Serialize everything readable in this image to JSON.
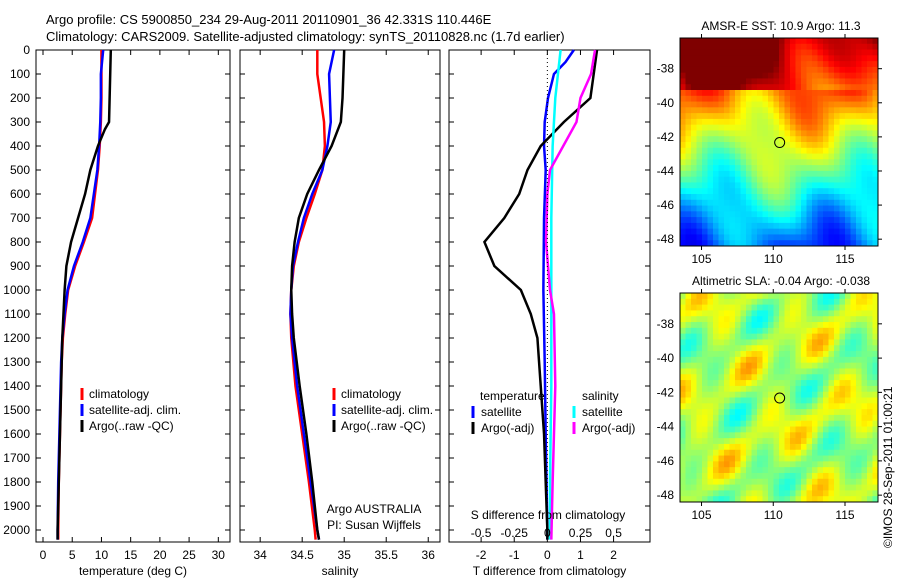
{
  "title_line1": "Argo profile: CS 5900850_234 29-Aug-2011 20110901_36 42.331S 110.446E",
  "title_line2": "Climatology: CARS2009. Satellite-adjusted climatology: synTS_20110828.nc (1.7d earlier)",
  "credit": "©IMOS 28-Sep-2011 01:00:21",
  "colors": {
    "climatology": "#ff0000",
    "satellite": "#0000ff",
    "argo": "#000000",
    "s_satellite": "#00ffff",
    "s_argo": "#ff00ff"
  },
  "chart_data": [
    {
      "type": "line",
      "title": "",
      "xlabel": "temperature (deg C)",
      "ylabel": "",
      "xlim": [
        -1.2,
        32
      ],
      "ylim": [
        2050,
        0
      ],
      "xticks": [
        0,
        5,
        10,
        15,
        20,
        25,
        30
      ],
      "yticks": [
        0,
        100,
        200,
        300,
        400,
        500,
        600,
        700,
        800,
        900,
        1000,
        1100,
        1200,
        1300,
        1400,
        1500,
        1600,
        1700,
        1800,
        1900,
        2000
      ],
      "legend": [
        "climatology",
        "satellite-adj. clim.",
        "Argo(..raw -QC)"
      ],
      "series": [
        {
          "name": "climatology",
          "color": "#ff0000",
          "depth": [
            0,
            100,
            200,
            300,
            400,
            500,
            600,
            700,
            800,
            900,
            1000,
            1100,
            1200,
            1300,
            1400,
            1600,
            1800,
            2000,
            2040
          ],
          "values": [
            10,
            10,
            10,
            9.9,
            9.7,
            9.4,
            8.9,
            8.4,
            7.0,
            5.5,
            4.3,
            3.8,
            3.4,
            3.2,
            3.1,
            2.9,
            2.7,
            2.6,
            2.6
          ]
        },
        {
          "name": "satellite-adj. clim.",
          "color": "#0000ff",
          "depth": [
            0,
            100,
            200,
            300,
            400,
            500,
            600,
            700,
            800,
            900,
            1000,
            1100,
            1200,
            1300,
            1400,
            1600,
            1800,
            2000,
            2040
          ],
          "values": [
            10.3,
            9.9,
            9.9,
            9.8,
            9.6,
            9.3,
            8.7,
            8.1,
            6.8,
            5.3,
            4.2,
            3.7,
            3.3,
            3.1,
            3.0,
            2.8,
            2.6,
            2.5,
            2.5
          ]
        },
        {
          "name": "Argo(..raw -QC)",
          "color": "#000000",
          "depth": [
            0,
            100,
            200,
            300,
            330,
            400,
            500,
            600,
            700,
            800,
            900,
            1000,
            1100,
            1200,
            1400,
            1600,
            1800,
            2000,
            2040
          ],
          "values": [
            11.6,
            11.5,
            11.4,
            11.3,
            10.6,
            9.4,
            8.1,
            7.2,
            6.0,
            4.8,
            4.0,
            3.7,
            3.5,
            3.3,
            3.1,
            2.9,
            2.7,
            2.5,
            2.5
          ]
        }
      ]
    },
    {
      "type": "line",
      "xlabel": "salinity",
      "xlim": [
        33.76,
        36.14
      ],
      "ylim": [
        2050,
        0
      ],
      "xticks": [
        34,
        34.5,
        35,
        35.5,
        36
      ],
      "legend": [
        "climatology",
        "satellite-adj. clim.",
        "Argo(..raw -QC)"
      ],
      "annotation": [
        "Argo AUSTRALIA",
        "PI: Susan Wijffels"
      ],
      "series": [
        {
          "name": "climatology",
          "color": "#ff0000",
          "depth": [
            0,
            100,
            200,
            300,
            400,
            500,
            600,
            700,
            800,
            900,
            1000,
            1100,
            1200,
            1400,
            1600,
            1800,
            2000,
            2040
          ],
          "values": [
            34.68,
            34.68,
            34.72,
            34.76,
            34.77,
            34.74,
            34.65,
            34.55,
            34.46,
            34.4,
            34.37,
            34.36,
            34.37,
            34.42,
            34.5,
            34.58,
            34.65,
            34.66
          ]
        },
        {
          "name": "satellite-adj. clim.",
          "color": "#0000ff",
          "depth": [
            0,
            100,
            200,
            300,
            400,
            500,
            600,
            700,
            800,
            900,
            1000,
            1100,
            1200,
            1400,
            1600,
            1800,
            2000,
            2040
          ],
          "values": [
            34.88,
            34.82,
            34.83,
            34.84,
            34.8,
            34.74,
            34.62,
            34.52,
            34.45,
            34.39,
            34.37,
            34.36,
            34.38,
            34.44,
            34.52,
            34.6,
            34.68,
            34.7
          ]
        },
        {
          "name": "Argo(..raw -QC)",
          "color": "#000000",
          "depth": [
            0,
            100,
            200,
            300,
            400,
            500,
            600,
            700,
            800,
            900,
            1000,
            1100,
            1200,
            1400,
            1600,
            1800,
            2000,
            2040
          ],
          "values": [
            35.0,
            34.99,
            34.98,
            34.96,
            34.85,
            34.7,
            34.56,
            34.46,
            34.41,
            34.38,
            34.37,
            34.38,
            34.4,
            34.47,
            34.55,
            34.62,
            34.68,
            34.7
          ]
        }
      ]
    },
    {
      "type": "line",
      "xlabel": "T difference from climatology",
      "xlabel_top": "S difference from climatology",
      "xlim": [
        -2.97,
        3.1
      ],
      "ylim": [
        2050,
        0
      ],
      "xticks": [
        -2,
        -1,
        0,
        1,
        2
      ],
      "xticks_s": [
        "-0.5",
        "-0.25",
        "0",
        "0.25",
        "0.5"
      ],
      "s_scale": 4,
      "legend_t_title": "temperature",
      "legend_s_title": "salinity",
      "legend_t": [
        "satellite",
        "Argo(-adj)"
      ],
      "legend_s": [
        "satellite",
        "Argo(-adj)"
      ],
      "series": [
        {
          "name": "T satellite",
          "color": "#0000ff",
          "units": "T",
          "depth": [
            0,
            50,
            100,
            200,
            300,
            400,
            500,
            700,
            1000,
            1300,
            1600,
            2000,
            2040
          ],
          "values": [
            0.8,
            0.55,
            0.2,
            0.02,
            -0.08,
            -0.1,
            -0.05,
            -0.1,
            -0.12,
            -0.08,
            -0.05,
            0,
            0
          ]
        },
        {
          "name": "T Argo(-adj)",
          "color": "#000000",
          "units": "T",
          "depth": [
            0,
            100,
            200,
            300,
            400,
            500,
            600,
            700,
            800,
            900,
            1000,
            1100,
            1200,
            1400,
            1600,
            2000,
            2040
          ],
          "values": [
            1.5,
            1.4,
            1.3,
            0.5,
            -0.2,
            -0.6,
            -0.85,
            -1.3,
            -1.9,
            -1.6,
            -0.8,
            -0.5,
            -0.3,
            -0.2,
            -0.1,
            0,
            0
          ]
        },
        {
          "name": "S satellite",
          "color": "#00ffff",
          "units": "S",
          "depth": [
            0,
            100,
            200,
            400,
            700,
            1000,
            1400,
            1800,
            2040
          ],
          "values": [
            0.1,
            0.08,
            0.06,
            0.04,
            0.03,
            0.03,
            0.03,
            0.02,
            0.02
          ]
        },
        {
          "name": "S Argo(-adj)",
          "color": "#ff00ff",
          "units": "S",
          "depth": [
            0,
            100,
            200,
            300,
            400,
            500,
            600,
            800,
            1000,
            1100,
            1400,
            1600,
            1800,
            2040
          ],
          "values": [
            0.36,
            0.33,
            0.25,
            0.22,
            0.12,
            0.02,
            0,
            -0.01,
            0.02,
            0.05,
            0.06,
            0.05,
            0.04,
            0.03
          ]
        }
      ]
    },
    {
      "type": "heatmap",
      "title": "AMSR-E SST: 10.9 Argo: 11.3",
      "xlim": [
        103.5,
        117.3
      ],
      "ylim": [
        -48.4,
        -36.2
      ],
      "xticks": [
        105,
        110,
        115
      ],
      "yticks": [
        -38,
        -40,
        -42,
        -44,
        -46,
        -48
      ],
      "marker": [
        110.446,
        -42.331
      ]
    },
    {
      "type": "heatmap",
      "title": "Altimetric SLA: -0.04  Argo: -0.038",
      "xlim": [
        103.5,
        117.3
      ],
      "ylim": [
        -48.4,
        -36.2
      ],
      "xticks": [
        105,
        110,
        115
      ],
      "yticks": [
        -38,
        -40,
        -42,
        -44,
        -46,
        -48
      ],
      "marker": [
        110.446,
        -42.331
      ]
    }
  ]
}
